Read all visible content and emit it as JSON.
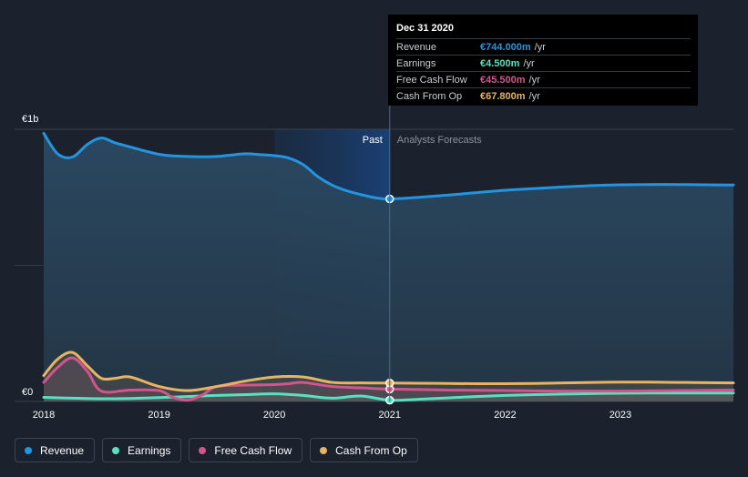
{
  "chart_data": {
    "type": "area",
    "y_top_label": "€1b",
    "y_zero_label": "€0",
    "ylim": [
      0,
      1000
    ],
    "xlim": [
      2018.0,
      2023.98
    ],
    "x_ticks": [
      "2018",
      "2019",
      "2020",
      "2021",
      "2022",
      "2023"
    ],
    "x_tick_values": [
      2018,
      2019,
      2020,
      2021,
      2022,
      2023
    ],
    "past_label": "Past",
    "forecast_label": "Analysts Forecasts",
    "divider_x": 2021.0,
    "highlight_range": [
      2020.0,
      2021.0
    ],
    "series": [
      {
        "name": "Revenue",
        "color": "#2394df",
        "x": [
          2018.0,
          2018.12,
          2018.25,
          2018.38,
          2018.5,
          2018.62,
          2018.75,
          2018.88,
          2019.0,
          2019.12,
          2019.25,
          2019.38,
          2019.5,
          2019.62,
          2019.75,
          2019.88,
          2020.0,
          2020.12,
          2020.25,
          2020.38,
          2020.5,
          2020.62,
          2020.75,
          2020.88,
          2021.0,
          2021.25,
          2021.5,
          2021.75,
          2022.0,
          2022.25,
          2022.5,
          2022.75,
          2023.0,
          2023.25,
          2023.5,
          2023.75,
          2023.98
        ],
        "values": [
          985,
          910,
          898,
          945,
          968,
          950,
          935,
          920,
          908,
          902,
          900,
          899,
          900,
          905,
          910,
          907,
          903,
          895,
          870,
          825,
          795,
          775,
          760,
          748,
          744,
          750,
          758,
          767,
          776,
          782,
          788,
          793,
          796,
          797,
          797,
          796,
          795
        ]
      },
      {
        "name": "Earnings",
        "color": "#58e1c1",
        "x": [
          2018.0,
          2018.25,
          2018.5,
          2018.75,
          2019.0,
          2019.25,
          2019.5,
          2019.75,
          2020.0,
          2020.25,
          2020.5,
          2020.75,
          2021.0,
          2021.25,
          2021.5,
          2021.75,
          2022.0,
          2022.25,
          2022.5,
          2022.75,
          2023.0,
          2023.25,
          2023.5,
          2023.75,
          2023.98
        ],
        "values": [
          15,
          12,
          10,
          11,
          14,
          18,
          22,
          25,
          28,
          22,
          12,
          20,
          4.5,
          8,
          13,
          18,
          22,
          25,
          27,
          29,
          30,
          31,
          31,
          31,
          31
        ]
      },
      {
        "name": "Free Cash Flow",
        "color": "#d4558d",
        "x": [
          2018.0,
          2018.12,
          2018.25,
          2018.38,
          2018.5,
          2018.75,
          2019.0,
          2019.12,
          2019.25,
          2019.38,
          2019.5,
          2019.75,
          2020.0,
          2020.12,
          2020.25,
          2020.5,
          2020.75,
          2021.0,
          2021.25,
          2021.5,
          2021.75,
          2022.0,
          2022.25,
          2022.5,
          2022.75,
          2023.0,
          2023.25,
          2023.5,
          2023.75,
          2023.98
        ],
        "values": [
          70,
          125,
          160,
          110,
          38,
          42,
          40,
          15,
          5,
          25,
          55,
          60,
          62,
          65,
          70,
          55,
          50,
          45.5,
          44,
          42,
          41,
          40,
          39,
          38,
          38,
          38,
          39,
          40,
          41,
          42
        ]
      },
      {
        "name": "Cash From Op",
        "color": "#e7b462",
        "x": [
          2018.0,
          2018.12,
          2018.25,
          2018.38,
          2018.5,
          2018.62,
          2018.75,
          2019.0,
          2019.25,
          2019.5,
          2019.75,
          2020.0,
          2020.25,
          2020.5,
          2020.75,
          2021.0,
          2021.25,
          2021.5,
          2021.75,
          2022.0,
          2022.25,
          2022.5,
          2022.75,
          2023.0,
          2023.25,
          2023.5,
          2023.75,
          2023.98
        ],
        "values": [
          95,
          155,
          180,
          130,
          85,
          85,
          90,
          55,
          40,
          55,
          75,
          90,
          90,
          70,
          68,
          67.8,
          67,
          66,
          65,
          65,
          66,
          68,
          70,
          71,
          71,
          70,
          69,
          68
        ]
      }
    ]
  },
  "tooltip": {
    "date": "Dec 31 2020",
    "rows": [
      {
        "name": "Revenue",
        "value": "€744.000m",
        "unit": "/yr",
        "color": "#2394df"
      },
      {
        "name": "Earnings",
        "value": "€4.500m",
        "unit": "/yr",
        "color": "#58e1c1"
      },
      {
        "name": "Free Cash Flow",
        "value": "€45.500m",
        "unit": "/yr",
        "color": "#d4558d"
      },
      {
        "name": "Cash From Op",
        "value": "€67.800m",
        "unit": "/yr",
        "color": "#e7b462"
      }
    ]
  },
  "legend": [
    {
      "label": "Revenue",
      "color": "#2394df"
    },
    {
      "label": "Earnings",
      "color": "#58e1c1"
    },
    {
      "label": "Free Cash Flow",
      "color": "#d4558d"
    },
    {
      "label": "Cash From Op",
      "color": "#e7b462"
    }
  ]
}
